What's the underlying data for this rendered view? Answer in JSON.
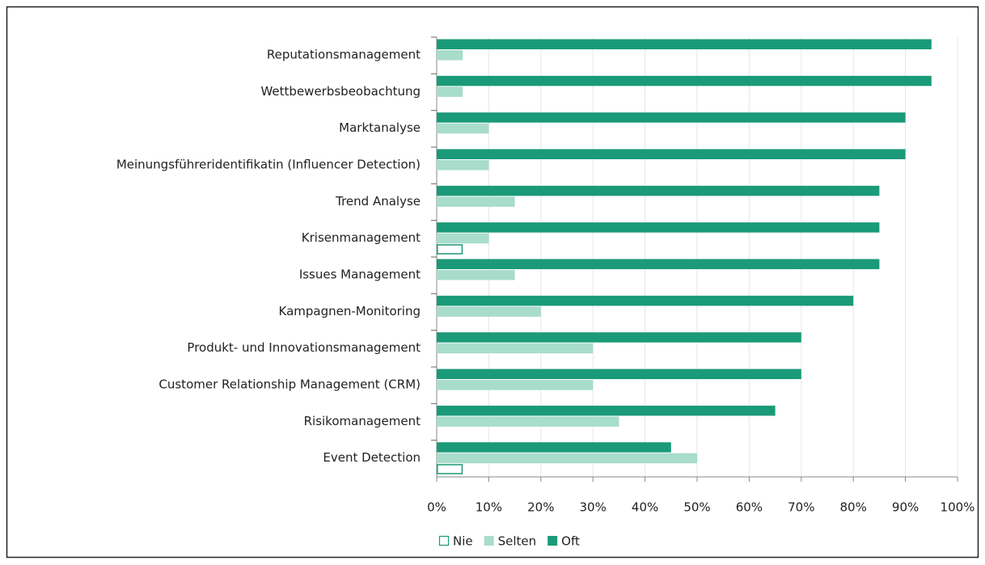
{
  "chart_data": {
    "type": "hbar",
    "categories": [
      "Reputationsmanagement",
      "Wettbewerbsbeobachtung",
      "Marktanalyse",
      "Meinungsführeridentifikatin (Influencer Detection)",
      "Trend Analyse",
      "Krisenmanagement",
      "Issues Management",
      "Kampagnen-Monitoring",
      "Produkt- und Innovationsmanagement",
      "Customer Relationship Management (CRM)",
      "Risikomanagement",
      "Event Detection"
    ],
    "series": [
      {
        "name": "Oft",
        "color": "#1a9a78",
        "values": [
          95,
          95,
          90,
          90,
          85,
          85,
          85,
          80,
          70,
          70,
          65,
          45
        ]
      },
      {
        "name": "Selten",
        "color": "#a8dccb",
        "values": [
          5,
          5,
          10,
          10,
          15,
          10,
          15,
          20,
          30,
          30,
          35,
          50
        ]
      },
      {
        "name": "Nie",
        "color": "#1a9a78",
        "outline": true,
        "values": [
          0,
          0,
          0,
          0,
          0,
          5,
          0,
          0,
          0,
          0,
          0,
          5
        ]
      }
    ],
    "legend_order": [
      2,
      1,
      0
    ],
    "xlim": [
      0,
      100
    ],
    "xticks": [
      {
        "value": 0,
        "label": "0%"
      },
      {
        "value": 10,
        "label": "10%"
      },
      {
        "value": 20,
        "label": "20%"
      },
      {
        "value": 30,
        "label": "30%"
      },
      {
        "value": 40,
        "label": "40%"
      },
      {
        "value": 50,
        "label": "50%"
      },
      {
        "value": 60,
        "label": "60%"
      },
      {
        "value": 70,
        "label": "70%"
      },
      {
        "value": 80,
        "label": "80%"
      },
      {
        "value": 90,
        "label": "90%"
      },
      {
        "value": 100,
        "label": "100%"
      }
    ],
    "grid": true,
    "legend": "bottom"
  }
}
